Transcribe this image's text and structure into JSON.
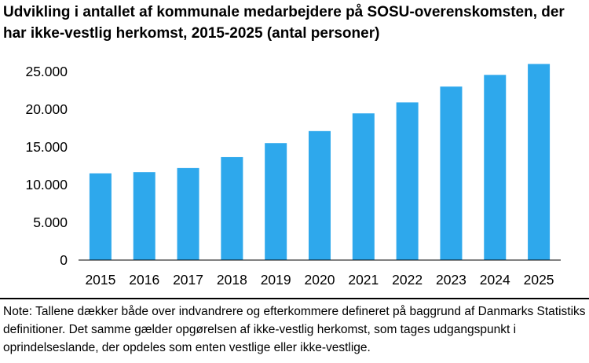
{
  "chart_data": {
    "type": "bar",
    "title": "Udvikling i antallet af kommunale medarbejdere på SOSU-overenskomsten, der har ikke-vestlig herkomst, 2015-2025 (antal personer)",
    "xlabel": "",
    "ylabel": "",
    "categories": [
      "2015",
      "2016",
      "2017",
      "2018",
      "2019",
      "2020",
      "2021",
      "2022",
      "2023",
      "2024",
      "2025"
    ],
    "values": [
      11500,
      11650,
      12200,
      13650,
      15500,
      17100,
      19450,
      20900,
      23000,
      24550,
      26000
    ],
    "ylim": [
      0,
      25000
    ],
    "yticks": [
      0,
      5000,
      10000,
      15000,
      20000,
      25000
    ],
    "ytick_labels": [
      "0",
      "5.000",
      "10.000",
      "15.000",
      "20.000",
      "25.000"
    ],
    "bar_color": "#2ea8ec",
    "grid": false,
    "legend": "none"
  },
  "note": "Note: Tallene dækker både over indvandrere og efterkommere defineret på baggrund af Danmarks Statistiks definitioner. Det samme gælder opgørelsen af ikke-vestlig herkomst, som tages udgangspunkt i oprindelseslande, der opdeles som enten vestlige eller ikke-vestlige."
}
